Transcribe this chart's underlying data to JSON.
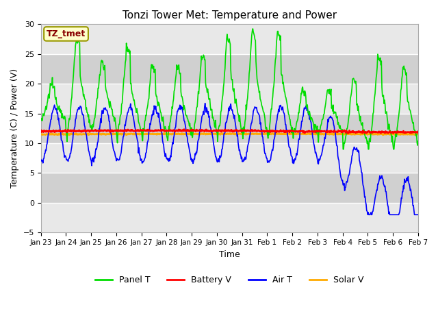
{
  "title": "Tonzi Tower Met: Temperature and Power",
  "xlabel": "Time",
  "ylabel": "Temperature (C) / Power (V)",
  "ylim": [
    -5,
    30
  ],
  "yticks": [
    -5,
    0,
    5,
    10,
    15,
    20,
    25,
    30
  ],
  "background_color": "#ffffff",
  "plot_bg_color": "#d8d8d8",
  "stripe_color_light": "#e8e8e8",
  "stripe_color_dark": "#d0d0d0",
  "label_box_text": "TZ_tmet",
  "label_box_facecolor": "#ffffcc",
  "label_box_edgecolor": "#999900",
  "label_box_textcolor": "#880000",
  "x_start": 0,
  "x_end": 15,
  "xtick_labels": [
    "Jan 23",
    "Jan 24",
    "Jan 25",
    "Jan 26",
    "Jan 27",
    "Jan 28",
    "Jan 29",
    "Jan 30",
    "Jan 31",
    "Feb 1",
    "Feb 2",
    "Feb 3",
    "Feb 4",
    "Feb 5",
    "Feb 6",
    "Feb 7"
  ],
  "xtick_positions": [
    0,
    1,
    2,
    3,
    4,
    5,
    6,
    7,
    8,
    9,
    10,
    11,
    12,
    13,
    14,
    15
  ],
  "grid_color": "#ffffff",
  "panel_t_color": "#00dd00",
  "battery_v_color": "#ff0000",
  "air_t_color": "#0000ff",
  "solar_v_color": "#ffaa00",
  "line_width": 1.2
}
